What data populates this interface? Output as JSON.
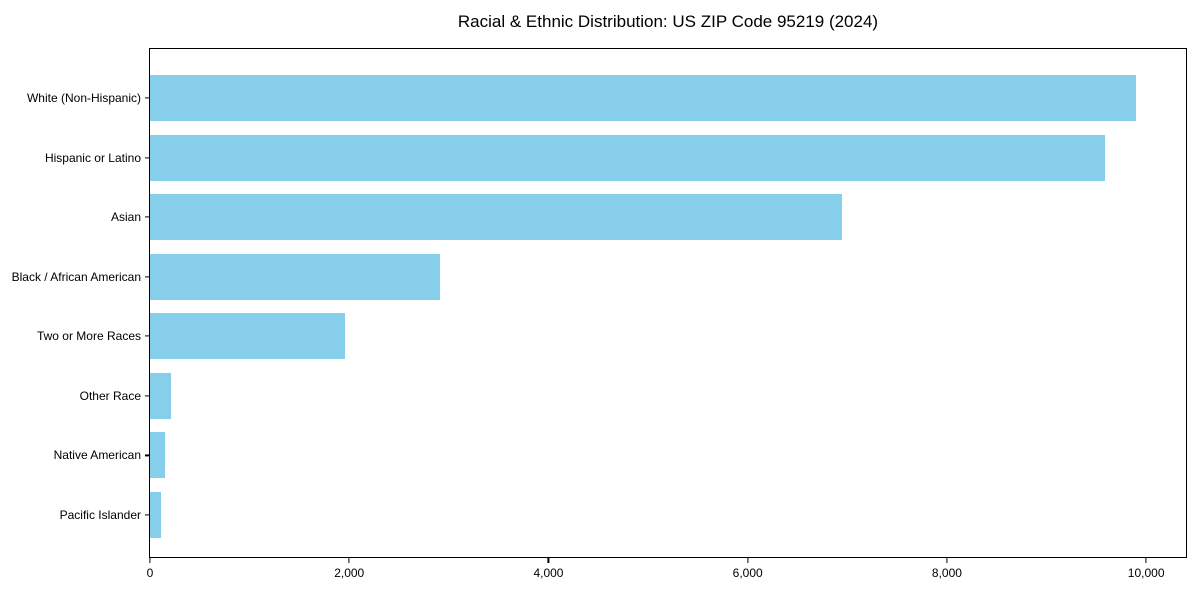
{
  "chart_data": {
    "type": "bar",
    "orientation": "horizontal",
    "title": "Racial & Ethnic Distribution: US ZIP Code 95219 (2024)",
    "xlabel": "",
    "ylabel": "",
    "categories": [
      "White (Non-Hispanic)",
      "Hispanic or Latino",
      "Asian",
      "Black / African American",
      "Two or More Races",
      "Other Race",
      "Native American",
      "Pacific Islander"
    ],
    "values": [
      9900,
      9590,
      6950,
      2910,
      1960,
      210,
      150,
      110
    ],
    "xlim": [
      0,
      10400
    ],
    "xticks": [
      0,
      2000,
      4000,
      6000,
      8000,
      10000
    ],
    "xtick_labels": [
      "0",
      "2,000",
      "4,000",
      "6,000",
      "8,000",
      "10,000"
    ],
    "bar_color": "#87CEEB",
    "grid": false,
    "legend_position": "none"
  }
}
